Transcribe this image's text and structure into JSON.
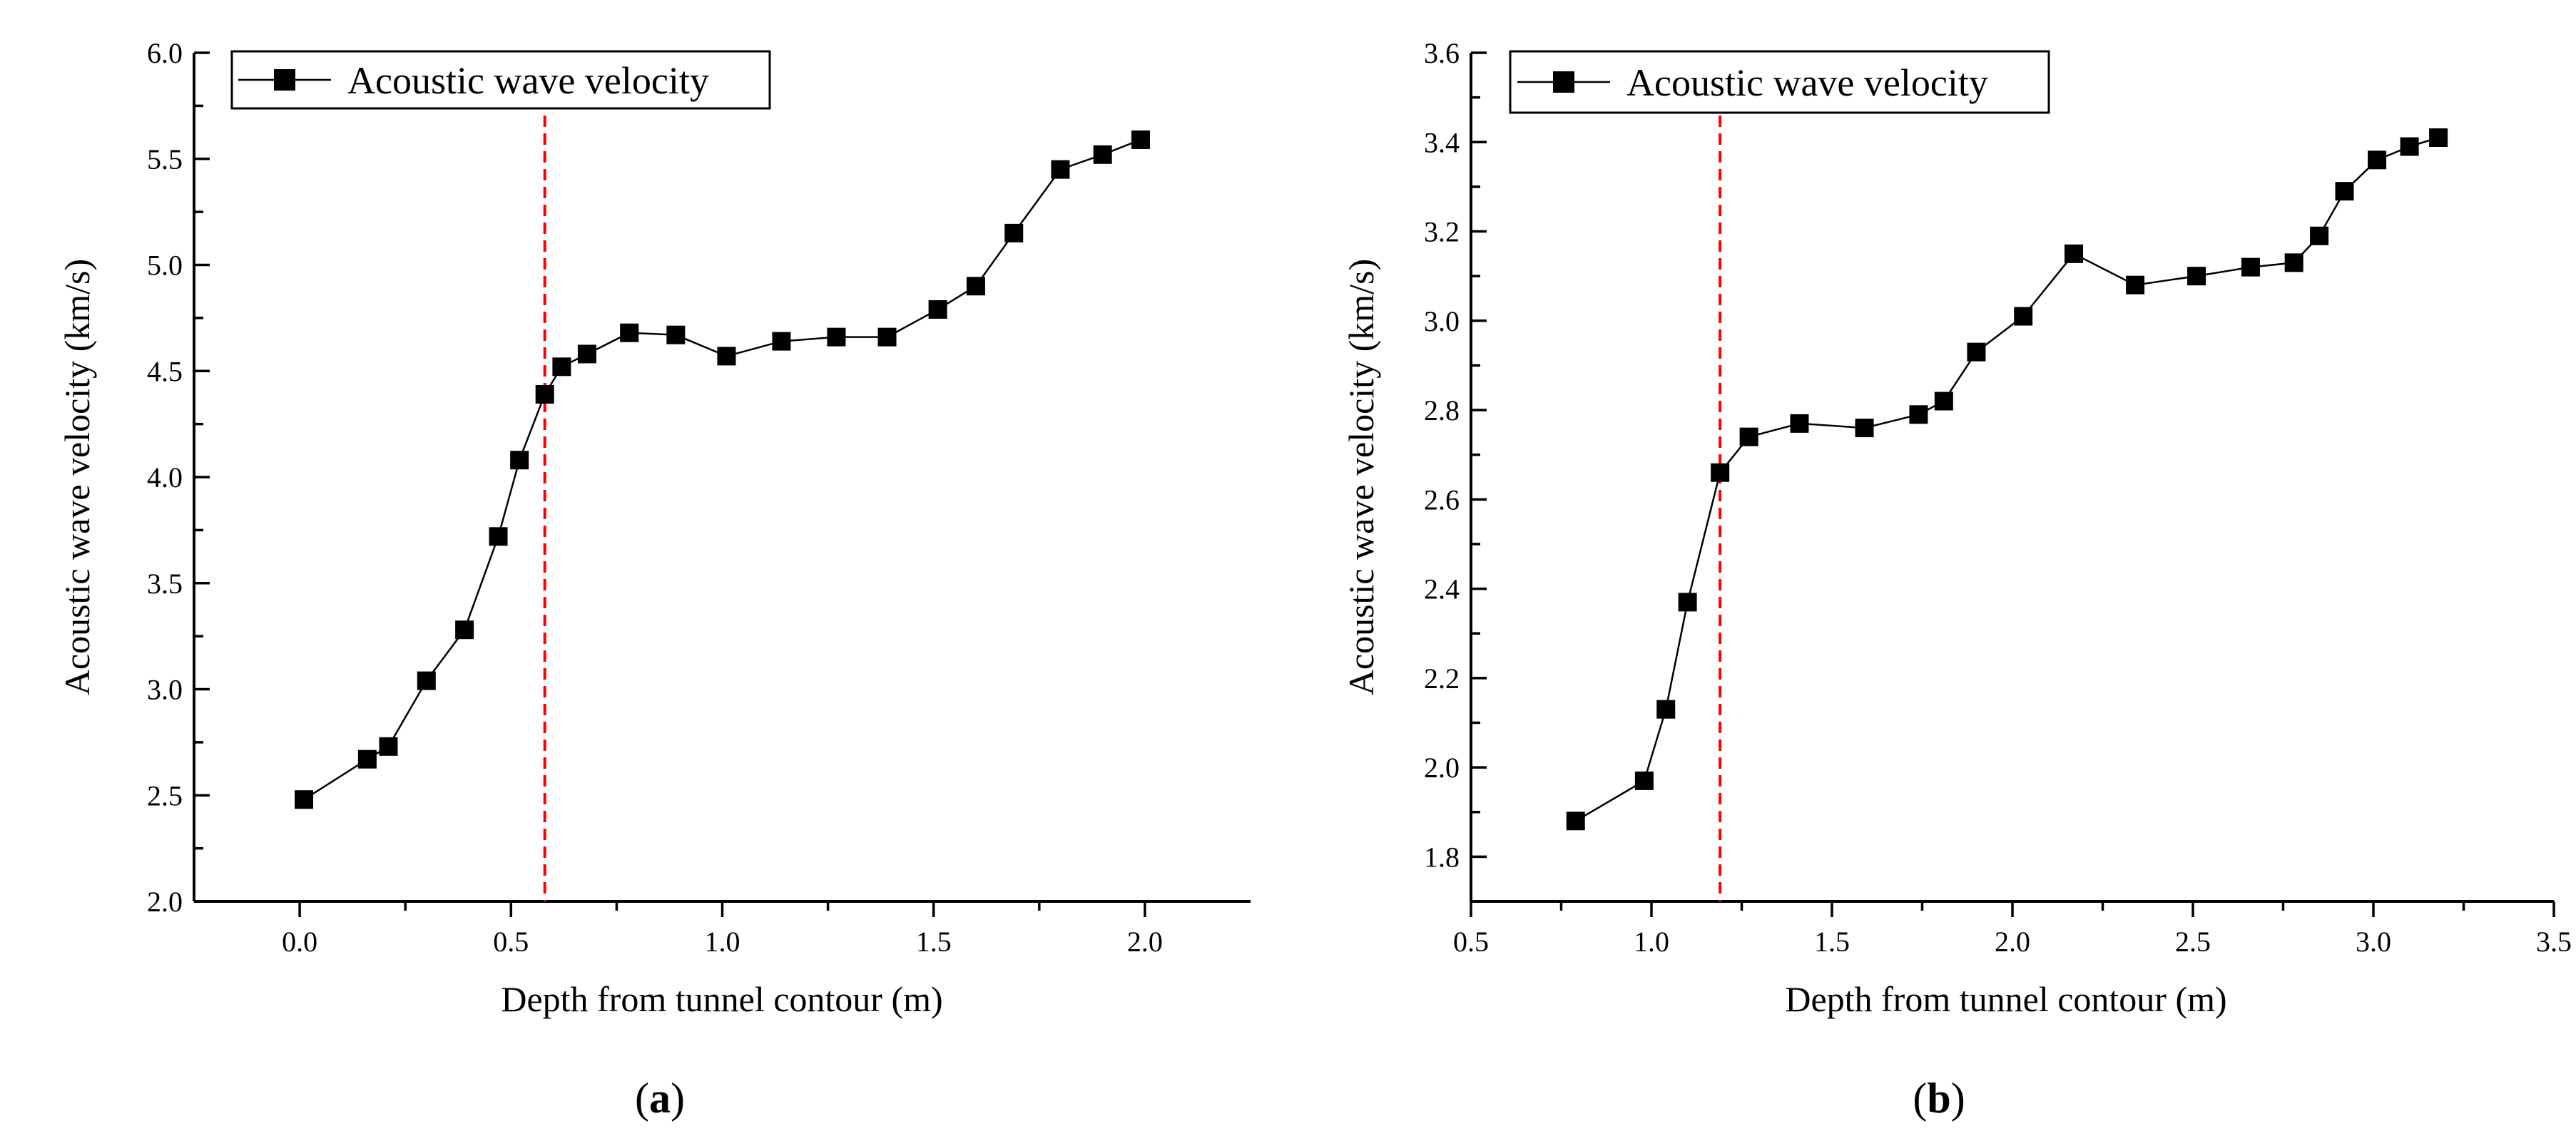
{
  "chart_data": [
    {
      "type": "line",
      "panel_label": "a",
      "title": "",
      "xlabel": "Depth from tunnel contour (m)",
      "ylabel": "Acoustic wave velocity (km/s)",
      "xlim": [
        -0.25,
        2.25
      ],
      "ylim": [
        2.0,
        6.0
      ],
      "x_major_ticks": [
        0.0,
        0.5,
        1.0,
        1.5,
        2.0
      ],
      "x_tick_labels": [
        "0.0",
        "0.5",
        "1.0",
        "1.5",
        "2.0"
      ],
      "y_major_ticks": [
        2.0,
        2.5,
        3.0,
        3.5,
        4.0,
        4.5,
        5.0,
        5.5,
        6.0
      ],
      "y_tick_labels": [
        "2.0",
        "2.5",
        "3.0",
        "3.5",
        "4.0",
        "4.5",
        "5.0",
        "5.5",
        "6.0"
      ],
      "legend": "top-left",
      "reference_line_x": 0.58,
      "series": [
        {
          "name": "Acoustic wave velocity",
          "color": "#000000",
          "marker": "square",
          "x": [
            0.01,
            0.16,
            0.21,
            0.3,
            0.39,
            0.47,
            0.52,
            0.58,
            0.62,
            0.68,
            0.78,
            0.89,
            1.01,
            1.14,
            1.27,
            1.39,
            1.51,
            1.6,
            1.69,
            1.8,
            1.9,
            1.99
          ],
          "y": [
            2.48,
            2.67,
            2.73,
            3.04,
            3.28,
            3.72,
            4.08,
            4.39,
            4.52,
            4.58,
            4.68,
            4.67,
            4.57,
            4.64,
            4.66,
            4.66,
            4.79,
            4.9,
            5.15,
            5.45,
            5.52,
            5.59
          ]
        }
      ]
    },
    {
      "type": "line",
      "panel_label": "b",
      "title": "",
      "xlabel": "Depth from tunnel contour (m)",
      "ylabel": "Acoustic wave velocity (km/s)",
      "xlim": [
        0.5,
        3.5
      ],
      "ylim": [
        1.7,
        3.6
      ],
      "x_major_ticks": [
        0.5,
        1.0,
        1.5,
        2.0,
        2.5,
        3.0,
        3.5
      ],
      "x_tick_labels": [
        "0.5",
        "1.0",
        "1.5",
        "2.0",
        "2.5",
        "3.0",
        "3.5"
      ],
      "y_major_ticks": [
        1.8,
        2.0,
        2.2,
        2.4,
        2.6,
        2.8,
        3.0,
        3.2,
        3.4,
        3.6
      ],
      "y_tick_labels": [
        "1.8",
        "2.0",
        "2.2",
        "2.4",
        "2.6",
        "2.8",
        "3.0",
        "3.2",
        "3.4",
        "3.6"
      ],
      "legend": "top-left",
      "reference_line_x": 1.19,
      "series": [
        {
          "name": "Acoustic wave velocity",
          "color": "#000000",
          "marker": "square",
          "x": [
            0.79,
            0.98,
            1.04,
            1.1,
            1.19,
            1.27,
            1.41,
            1.59,
            1.74,
            1.81,
            1.9,
            2.03,
            2.17,
            2.34,
            2.51,
            2.66,
            2.78,
            2.85,
            2.92,
            3.01,
            3.1,
            3.18
          ],
          "y": [
            1.88,
            1.97,
            2.13,
            2.37,
            2.66,
            2.74,
            2.77,
            2.76,
            2.79,
            2.82,
            2.93,
            3.01,
            3.15,
            3.08,
            3.1,
            3.12,
            3.13,
            3.19,
            3.29,
            3.36,
            3.39,
            3.41
          ]
        }
      ]
    }
  ],
  "colors": {
    "series": "#000000",
    "reference_line": "#ff0000",
    "background": "#ffffff"
  }
}
